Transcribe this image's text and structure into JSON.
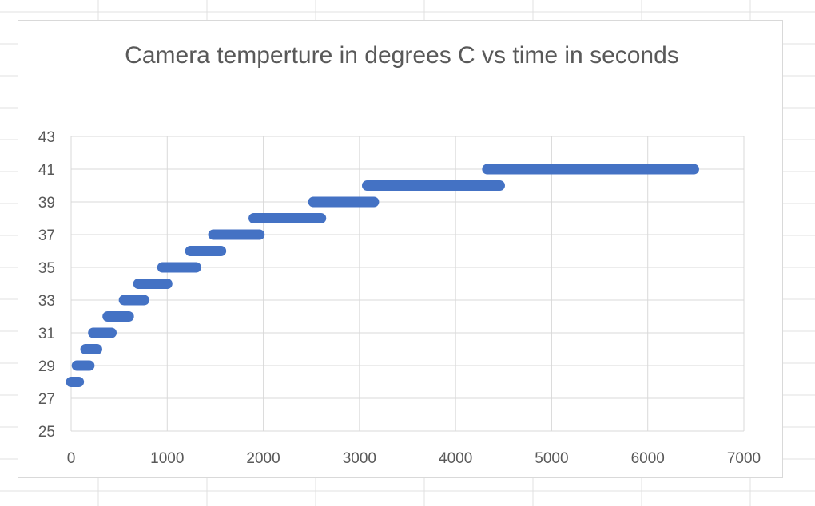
{
  "chart_data": {
    "type": "scatter",
    "title": "Camera temperture in degrees C vs time in seconds",
    "xlabel": "",
    "ylabel": "",
    "xlim": [
      0,
      7000
    ],
    "ylim": [
      25,
      43
    ],
    "x_ticks": [
      0,
      1000,
      2000,
      3000,
      4000,
      5000,
      6000,
      7000
    ],
    "y_ticks": [
      25,
      27,
      29,
      31,
      33,
      35,
      37,
      39,
      41,
      43
    ],
    "grid": true,
    "legend": "none",
    "colors": {
      "series": "#4472c4",
      "grid": "#d9d9d9",
      "text": "#595959"
    },
    "series": [
      {
        "segments": [
          {
            "y": 28,
            "x_start": 0,
            "x_end": 80
          },
          {
            "y": 29,
            "x_start": 60,
            "x_end": 190
          },
          {
            "y": 30,
            "x_start": 150,
            "x_end": 270
          },
          {
            "y": 31,
            "x_start": 230,
            "x_end": 420
          },
          {
            "y": 32,
            "x_start": 380,
            "x_end": 600
          },
          {
            "y": 33,
            "x_start": 550,
            "x_end": 760
          },
          {
            "y": 34,
            "x_start": 700,
            "x_end": 1000
          },
          {
            "y": 35,
            "x_start": 950,
            "x_end": 1300
          },
          {
            "y": 36,
            "x_start": 1240,
            "x_end": 1560
          },
          {
            "y": 37,
            "x_start": 1480,
            "x_end": 1960
          },
          {
            "y": 38,
            "x_start": 1900,
            "x_end": 2600
          },
          {
            "y": 39,
            "x_start": 2520,
            "x_end": 3150
          },
          {
            "y": 40,
            "x_start": 3080,
            "x_end": 4460
          },
          {
            "y": 41,
            "x_start": 4330,
            "x_end": 6480
          }
        ]
      }
    ]
  }
}
